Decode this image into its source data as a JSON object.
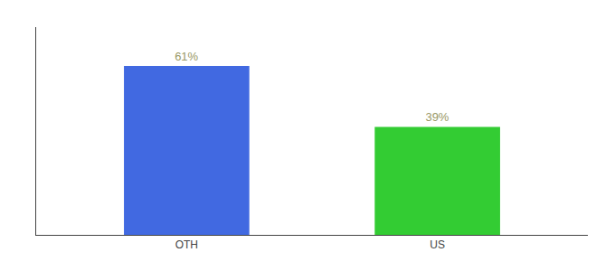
{
  "chart_data": {
    "type": "bar",
    "categories": [
      "OTH",
      "US"
    ],
    "values": [
      61,
      39
    ],
    "value_labels": [
      "61%",
      "39%"
    ],
    "colors": [
      "#4169e1",
      "#33cc33"
    ],
    "ylim": [
      0,
      75
    ],
    "data_labels": true,
    "tick_labels": "x",
    "grid": false
  }
}
